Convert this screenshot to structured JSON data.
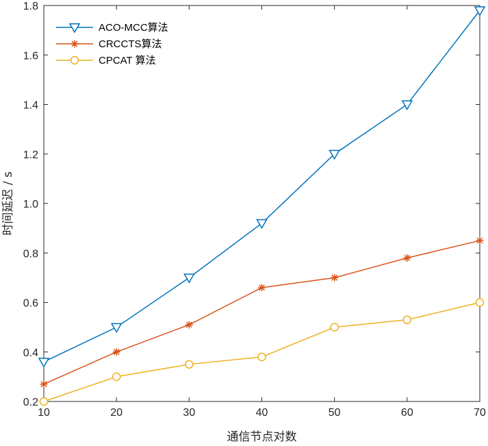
{
  "chart_data": {
    "type": "line",
    "title": "",
    "xlabel": "通信节点对数",
    "ylabel": "时间延迟 / s",
    "x": [
      10,
      20,
      30,
      40,
      50,
      60,
      70
    ],
    "xlim": [
      10,
      70
    ],
    "ylim": [
      0.2,
      1.8
    ],
    "xticks": [
      "10",
      "20",
      "30",
      "40",
      "50",
      "60",
      "70"
    ],
    "yticks": [
      "0.2",
      "0.4",
      "0.6",
      "0.8",
      "1.0",
      "1.2",
      "1.4",
      "1.6",
      "1.8"
    ],
    "grid": false,
    "legend_position": "top-left",
    "series": [
      {
        "name": "ACO-MCC算法",
        "color": "#0072BD",
        "marker": "triangle-down",
        "values": [
          0.36,
          0.5,
          0.7,
          0.92,
          1.2,
          1.4,
          1.78
        ]
      },
      {
        "name": "CRCCTS算法",
        "color": "#D95319",
        "marker": "asterisk",
        "values": [
          0.27,
          0.4,
          0.51,
          0.66,
          0.7,
          0.78,
          0.85
        ]
      },
      {
        "name": "CPCAT 算法",
        "color": "#EDB120",
        "marker": "circle",
        "values": [
          0.2,
          0.3,
          0.35,
          0.38,
          0.5,
          0.53,
          0.6
        ]
      }
    ]
  }
}
